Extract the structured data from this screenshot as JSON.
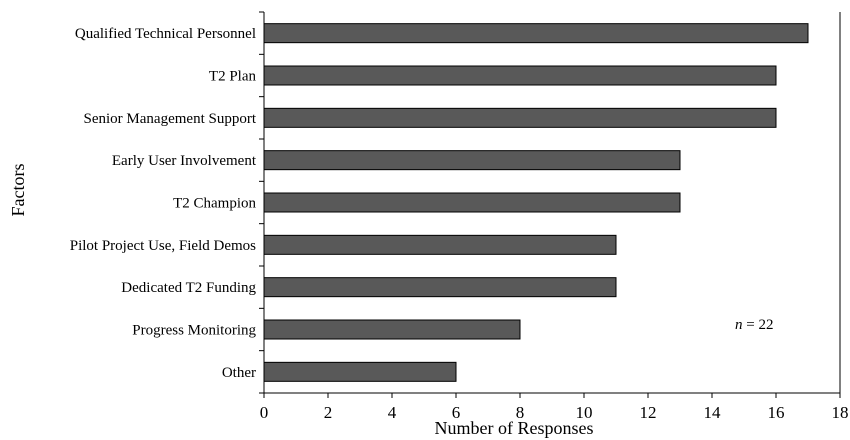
{
  "chart_data": {
    "type": "bar",
    "orientation": "horizontal",
    "categories": [
      "Qualified Technical Personnel",
      "T2 Plan",
      "Senior Management Support",
      "Early User Involvement",
      "T2 Champion",
      "Pilot Project Use, Field Demos",
      "Dedicated T2 Funding",
      "Progress Monitoring",
      "Other"
    ],
    "values": [
      17,
      16,
      16,
      13,
      13,
      11,
      11,
      8,
      6
    ],
    "title": "",
    "xlabel": "Number of Responses",
    "ylabel": "Factors",
    "xlim": [
      0,
      18
    ],
    "xticks": [
      "0",
      "2",
      "4",
      "6",
      "8",
      "10",
      "12",
      "14",
      "16",
      "18"
    ],
    "grid": false,
    "bar_color": "#595959",
    "annotation": {
      "italic": "n",
      "rest": " = 22"
    }
  }
}
